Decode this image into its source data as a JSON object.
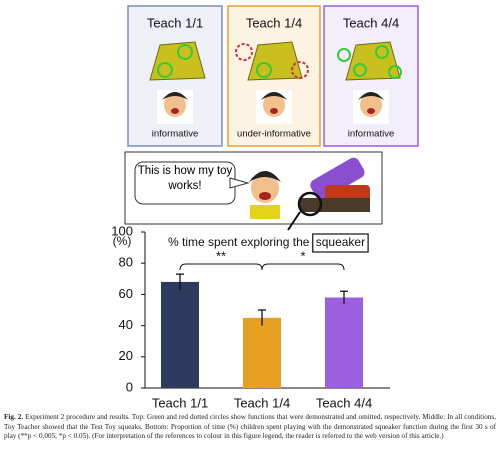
{
  "panels": [
    {
      "title": "Teach 1/1",
      "label": "informative"
    },
    {
      "title": "Teach 1/4",
      "label": "under-informative"
    },
    {
      "title": "Teach 4/4",
      "label": "informative"
    }
  ],
  "speech": "This is how my toy works!",
  "chart_data": {
    "type": "bar",
    "title": "% time spent exploring the",
    "title_emphasis": "squeaker",
    "y_label": "(%)",
    "categories": [
      "Teach 1/1",
      "Teach 1/4",
      "Teach 4/4"
    ],
    "values": [
      68,
      45,
      58
    ],
    "errors": [
      5,
      5,
      4
    ],
    "colors": [
      "#2d3a5e",
      "#e8a023",
      "#9b5fe0"
    ],
    "annotations": [
      "**",
      "*"
    ],
    "ylim": [
      0,
      100
    ],
    "yticks": [
      0,
      20,
      40,
      60,
      80,
      100
    ]
  },
  "caption": {
    "label": "Fig. 2.",
    "text": "Experiment 2 procedure and results. Top: Green and red dotted circles show functions that were demonstrated and omitted, respectively. Middle: In all conditions, Toy Teacher showed that the Test Toy squeaks. Bottom: Proportion of time (%) children spent playing with the demonstrated squeaker function during the first 30 s of play (**p < 0.005, *p < 0.05). (For interpretation of the references to colour in this figure legend, the reader is referred to the web version of this article.)"
  }
}
